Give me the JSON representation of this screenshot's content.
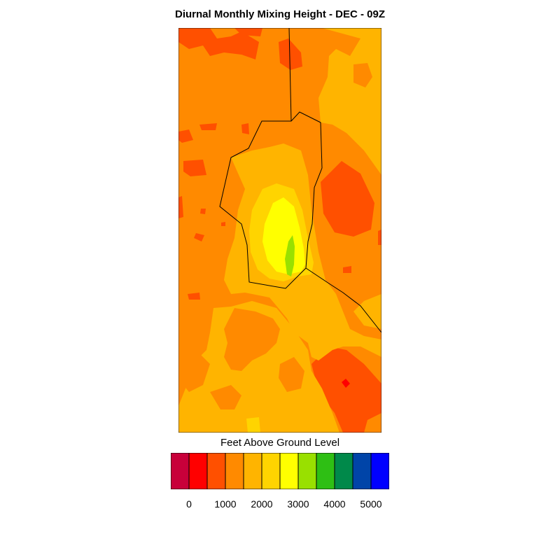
{
  "title": "Diurnal Monthly Mixing Height - DEC - 09Z",
  "legend": {
    "title": "Feet Above Ground Level",
    "colors": [
      "#c8003a",
      "#ff0000",
      "#ff5000",
      "#ff8a00",
      "#ffb400",
      "#ffd400",
      "#ffff00",
      "#99e000",
      "#2ebf14",
      "#00894a",
      "#0044a8",
      "#0000ff"
    ],
    "tick_labels": [
      "0",
      "1000",
      "2000",
      "3000",
      "4000",
      "5000"
    ]
  },
  "map_colors": {
    "base": "#ff8a00",
    "dark": "#ff5000",
    "darkest": "#ff0000",
    "light": "#ffb400",
    "lighter": "#ffd400",
    "yellow": "#ffff00",
    "green": "#99e000",
    "boundary": "#000000"
  }
}
